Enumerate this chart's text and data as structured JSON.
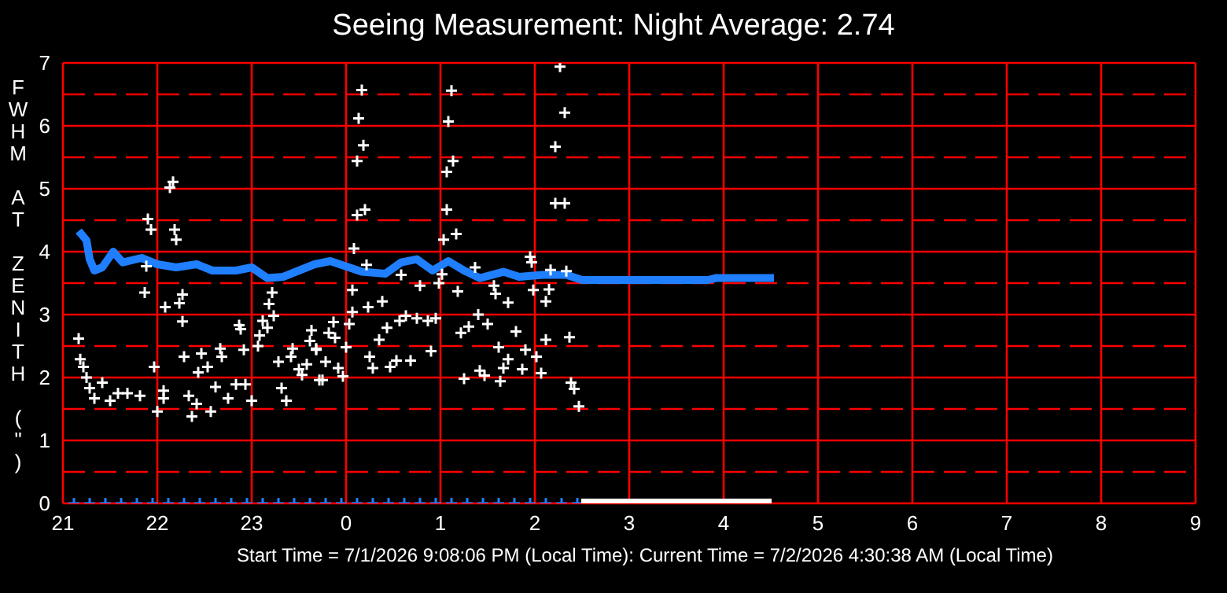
{
  "chart_data": {
    "type": "scatter",
    "title": "Seeing Measurement: Night Average: 2.74",
    "ylabel": "FWHM AT ZENITH (\")",
    "xlabel": "Start Time = 7/1/2026 9:08:06 PM (Local Time): Current Time = 7/2/2026 4:30:38 AM (Local Time)",
    "xlim": [
      "2026-07-01T21:00",
      "2026-07-02T09:00"
    ],
    "xticks": [
      {
        "value": "2026-07-01T21:00",
        "label": "21"
      },
      {
        "value": "2026-07-01T22:00",
        "label": "22"
      },
      {
        "value": "2026-07-01T23:00",
        "label": "23"
      },
      {
        "value": "2026-07-02T00:00",
        "label": "0"
      },
      {
        "value": "2026-07-02T01:00",
        "label": "1"
      },
      {
        "value": "2026-07-02T02:00",
        "label": "2"
      },
      {
        "value": "2026-07-02T03:00",
        "label": "3"
      },
      {
        "value": "2026-07-02T04:00",
        "label": "4"
      },
      {
        "value": "2026-07-02T05:00",
        "label": "5"
      },
      {
        "value": "2026-07-02T06:00",
        "label": "6"
      },
      {
        "value": "2026-07-02T07:00",
        "label": "7"
      },
      {
        "value": "2026-07-02T08:00",
        "label": "8"
      },
      {
        "value": "2026-07-02T09:00",
        "label": "9"
      }
    ],
    "ylim": [
      0,
      7
    ],
    "yticks": [
      0,
      {
        "value": 0.5,
        "label": null
      },
      1,
      {
        "value": 1.5,
        "label": null
      },
      2,
      {
        "value": 2.5,
        "label": null
      },
      3,
      {
        "value": 3.5,
        "label": null
      },
      4,
      {
        "value": 4.5,
        "label": null
      },
      5,
      {
        "value": 5.5,
        "label": null
      },
      6,
      {
        "value": 6.5,
        "label": null
      },
      7
    ],
    "grid": true,
    "series": [
      {
        "marker": "cross",
        "color": "#ffffff",
        "x": [
          "2026-07-01T22:10",
          "2026-07-01T22:08",
          "2026-07-01T21:54",
          "2026-07-01T21:56",
          "2026-07-01T22:11",
          "2026-07-01T22:12",
          "2026-07-01T21:53",
          "2026-07-01T21:52",
          "2026-07-01T22:16",
          "2026-07-01T22:14",
          "2026-07-01T22:05",
          "2026-07-01T22:16",
          "2026-07-01T21:10",
          "2026-07-01T21:11",
          "2026-07-01T21:13",
          "2026-07-01T21:15",
          "2026-07-01T21:17",
          "2026-07-01T21:20",
          "2026-07-01T21:25",
          "2026-07-01T21:30",
          "2026-07-01T21:35",
          "2026-07-01T21:41",
          "2026-07-01T21:49",
          "2026-07-01T21:58",
          "2026-07-01T22:00",
          "2026-07-01T22:04",
          "2026-07-01T22:04",
          "2026-07-01T22:17",
          "2026-07-01T22:20",
          "2026-07-01T22:22",
          "2026-07-01T22:25",
          "2026-07-01T22:26",
          "2026-07-01T22:28",
          "2026-07-01T22:32",
          "2026-07-01T22:34",
          "2026-07-01T22:37",
          "2026-07-01T22:40",
          "2026-07-01T22:41",
          "2026-07-01T22:45",
          "2026-07-01T22:50",
          "2026-07-01T22:53",
          "2026-07-01T22:55",
          "2026-07-01T22:56",
          "2026-07-01T23:00",
          "2026-07-01T23:04",
          "2026-07-01T23:05",
          "2026-07-01T23:07",
          "2026-07-01T23:10",
          "2026-07-01T23:11",
          "2026-07-01T23:13",
          "2026-07-01T23:14",
          "2026-07-01T23:17",
          "2026-07-01T23:19",
          "2026-07-01T23:22",
          "2026-07-01T23:25",
          "2026-07-01T23:26",
          "2026-07-01T23:30",
          "2026-07-01T23:32",
          "2026-07-01T23:35",
          "2026-07-01T23:37",
          "2026-07-01T23:38",
          "2026-07-01T23:41",
          "2026-07-01T23:43",
          "2026-07-01T22:52",
          "2026-07-02T00:10",
          "2026-07-02T00:08",
          "2026-07-02T00:11",
          "2026-07-02T00:07",
          "2026-07-02T00:07",
          "2026-07-02T00:12",
          "2026-07-02T00:05",
          "2026-07-02T00:13",
          "2026-07-02T00:04",
          "2026-07-02T00:14",
          "2026-07-02T00:23",
          "2026-07-02T00:04",
          "2026-07-02T00:02",
          "2026-07-01T23:52",
          "2026-07-01T23:49",
          "2026-07-01T23:41",
          "2026-07-01T23:53",
          "2026-07-02T00:00",
          "2026-07-01T23:47",
          "2026-07-01T23:45",
          "2026-07-01T23:55",
          "2026-07-01T23:58",
          "2026-07-02T00:15",
          "2026-07-02T00:17",
          "2026-07-02T00:21",
          "2026-07-02T00:26",
          "2026-07-02T00:28",
          "2026-07-02T00:32",
          "2026-07-02T00:34",
          "2026-07-02T00:38",
          "2026-07-02T00:41",
          "2026-07-02T00:45",
          "2026-07-02T00:52",
          "2026-07-02T00:54",
          "2026-07-02T00:57",
          "2026-07-02T00:35",
          "2026-07-02T00:47",
          "2026-07-02T00:59",
          "2026-07-02T01:01",
          "2026-07-02T01:07",
          "2026-07-02T01:05",
          "2026-07-02T01:08",
          "2026-07-02T01:04",
          "2026-07-02T01:04",
          "2026-07-02T01:10",
          "2026-07-02T01:02",
          "2026-07-02T01:11",
          "2026-07-02T01:13",
          "2026-07-02T01:15",
          "2026-07-02T01:18",
          "2026-07-02T01:24",
          "2026-07-02T01:22",
          "2026-07-02T01:25",
          "2026-07-02T01:28",
          "2026-07-02T01:30",
          "2026-07-02T01:34",
          "2026-07-02T01:35",
          "2026-07-02T01:37",
          "2026-07-02T01:38",
          "2026-07-02T01:40",
          "2026-07-02T01:43",
          "2026-07-02T01:43",
          "2026-07-02T01:48",
          "2026-07-02T01:52",
          "2026-07-02T01:54",
          "2026-07-02T01:57",
          "2026-07-02T01:58",
          "2026-07-02T01:59",
          "2026-07-02T02:01",
          "2026-07-02T02:04",
          "2026-07-02T02:07",
          "2026-07-02T02:07",
          "2026-07-02T02:09",
          "2026-07-02T02:10",
          "2026-07-02T02:13",
          "2026-07-02T02:19",
          "2026-07-02T02:13",
          "2026-07-02T02:19",
          "2026-07-02T02:16",
          "2026-07-02T02:22",
          "2026-07-02T02:23",
          "2026-07-02T02:20",
          "2026-07-02T02:25",
          "2026-07-02T02:28"
        ],
        "values": [
          5.11,
          5.02,
          4.52,
          4.35,
          4.35,
          4.19,
          3.77,
          3.35,
          3.32,
          3.18,
          3.12,
          2.89,
          2.62,
          2.29,
          2.17,
          2.0,
          1.83,
          1.67,
          1.92,
          1.63,
          1.75,
          1.75,
          1.71,
          2.17,
          1.46,
          1.79,
          1.67,
          2.33,
          1.71,
          1.38,
          1.58,
          2.08,
          2.38,
          2.17,
          1.46,
          1.85,
          2.46,
          2.33,
          1.67,
          1.89,
          2.77,
          2.44,
          1.89,
          1.63,
          2.5,
          2.67,
          2.9,
          2.79,
          3.17,
          3.35,
          2.98,
          2.25,
          1.83,
          1.63,
          2.33,
          2.46,
          2.13,
          2.04,
          2.21,
          2.58,
          2.75,
          2.46,
          1.96,
          2.83,
          6.57,
          6.12,
          5.69,
          5.44,
          4.58,
          4.67,
          4.05,
          3.79,
          3.39,
          3.12,
          3.21,
          3.04,
          2.85,
          2.88,
          2.71,
          2.44,
          2.63,
          2.48,
          2.25,
          1.96,
          2.15,
          2.02,
          2.33,
          2.15,
          2.6,
          2.79,
          2.17,
          2.27,
          2.9,
          2.98,
          2.27,
          2.94,
          2.9,
          2.42,
          2.94,
          3.63,
          3.46,
          3.5,
          3.64,
          6.56,
          6.07,
          5.44,
          5.27,
          4.67,
          4.28,
          4.19,
          3.37,
          2.71,
          1.98,
          2.81,
          3.0,
          3.75,
          2.11,
          2.03,
          2.85,
          3.46,
          3.33,
          2.48,
          1.94,
          2.15,
          2.29,
          3.19,
          2.73,
          2.13,
          2.44,
          3.92,
          3.83,
          3.39,
          2.33,
          2.07,
          2.6,
          3.21,
          3.4,
          3.71,
          5.67,
          6.21,
          4.77,
          4.77,
          6.94,
          2.64,
          1.92,
          3.69,
          1.82,
          1.54
        ]
      },
      {
        "type": "line",
        "marker": "none",
        "color": "#1f7fff",
        "x": [
          "2026-07-01T21:10",
          "2026-07-01T21:15",
          "2026-07-01T21:17",
          "2026-07-01T21:20",
          "2026-07-01T21:25",
          "2026-07-01T21:32",
          "2026-07-01T21:38",
          "2026-07-01T21:50",
          "2026-07-01T22:00",
          "2026-07-01T22:12",
          "2026-07-01T22:25",
          "2026-07-01T22:35",
          "2026-07-01T22:50",
          "2026-07-01T23:00",
          "2026-07-01T23:10",
          "2026-07-01T23:20",
          "2026-07-01T23:30",
          "2026-07-01T23:40",
          "2026-07-01T23:50",
          "2026-07-02T00:10",
          "2026-07-02T00:25",
          "2026-07-02T00:35",
          "2026-07-02T00:45",
          "2026-07-02T00:55",
          "2026-07-02T01:05",
          "2026-07-02T01:15",
          "2026-07-02T01:25",
          "2026-07-02T01:40",
          "2026-07-02T01:50",
          "2026-07-02T02:05",
          "2026-07-02T02:20",
          "2026-07-02T02:30",
          "2026-07-02T03:00",
          "2026-07-02T03:30",
          "2026-07-02T03:50",
          "2026-07-02T03:55",
          "2026-07-02T04:15",
          "2026-07-02T04:32"
        ],
        "values": [
          4.33,
          4.18,
          3.88,
          3.7,
          3.75,
          4.0,
          3.83,
          3.9,
          3.8,
          3.75,
          3.8,
          3.7,
          3.7,
          3.75,
          3.58,
          3.6,
          3.7,
          3.8,
          3.85,
          3.68,
          3.65,
          3.83,
          3.88,
          3.7,
          3.85,
          3.7,
          3.58,
          3.68,
          3.6,
          3.63,
          3.63,
          3.55,
          3.55,
          3.55,
          3.55,
          3.58,
          3.58,
          3.58
        ]
      },
      {
        "marker": "cross",
        "color": "#1f7fff",
        "x": [
          "2026-07-01T21:07",
          "2026-07-01T21:17",
          "2026-07-01T21:27",
          "2026-07-01T21:37",
          "2026-07-01T21:47",
          "2026-07-01T21:57",
          "2026-07-01T22:07",
          "2026-07-01T22:17",
          "2026-07-01T22:27",
          "2026-07-01T22:37",
          "2026-07-01T22:47",
          "2026-07-01T22:57",
          "2026-07-01T23:07",
          "2026-07-01T23:17",
          "2026-07-01T23:27",
          "2026-07-01T23:37",
          "2026-07-01T23:47",
          "2026-07-01T23:57",
          "2026-07-02T00:07",
          "2026-07-02T00:17",
          "2026-07-02T00:27",
          "2026-07-02T00:37",
          "2026-07-02T00:47",
          "2026-07-02T00:57",
          "2026-07-02T01:07",
          "2026-07-02T01:17",
          "2026-07-02T01:27",
          "2026-07-02T01:37",
          "2026-07-02T01:47",
          "2026-07-02T01:57",
          "2026-07-02T02:07",
          "2026-07-02T02:17",
          "2026-07-02T02:27"
        ],
        "values": [
          0,
          0,
          0,
          0,
          0,
          0,
          0,
          0,
          0,
          0,
          0,
          0,
          0,
          0,
          0,
          0,
          0,
          0,
          0,
          0,
          0,
          0,
          0,
          0,
          0,
          0,
          0,
          0,
          0,
          0,
          0,
          0,
          0
        ]
      },
      {
        "marker": "square",
        "color": "#ffffff",
        "x": [
          "2026-07-02T02:33",
          "2026-07-02T02:39",
          "2026-07-02T02:45",
          "2026-07-02T02:51",
          "2026-07-02T02:57",
          "2026-07-02T03:03",
          "2026-07-02T03:09",
          "2026-07-02T03:15",
          "2026-07-02T03:21",
          "2026-07-02T03:27",
          "2026-07-02T03:33",
          "2026-07-02T03:39",
          "2026-07-02T03:45",
          "2026-07-02T03:51",
          "2026-07-02T03:57",
          "2026-07-02T04:03",
          "2026-07-02T04:09",
          "2026-07-02T04:15",
          "2026-07-02T04:21",
          "2026-07-02T04:27"
        ],
        "values": [
          0,
          0,
          0,
          0,
          0,
          0,
          0,
          0,
          0,
          0,
          0,
          0,
          0,
          0,
          0,
          0,
          0,
          0,
          0,
          0
        ]
      }
    ]
  }
}
